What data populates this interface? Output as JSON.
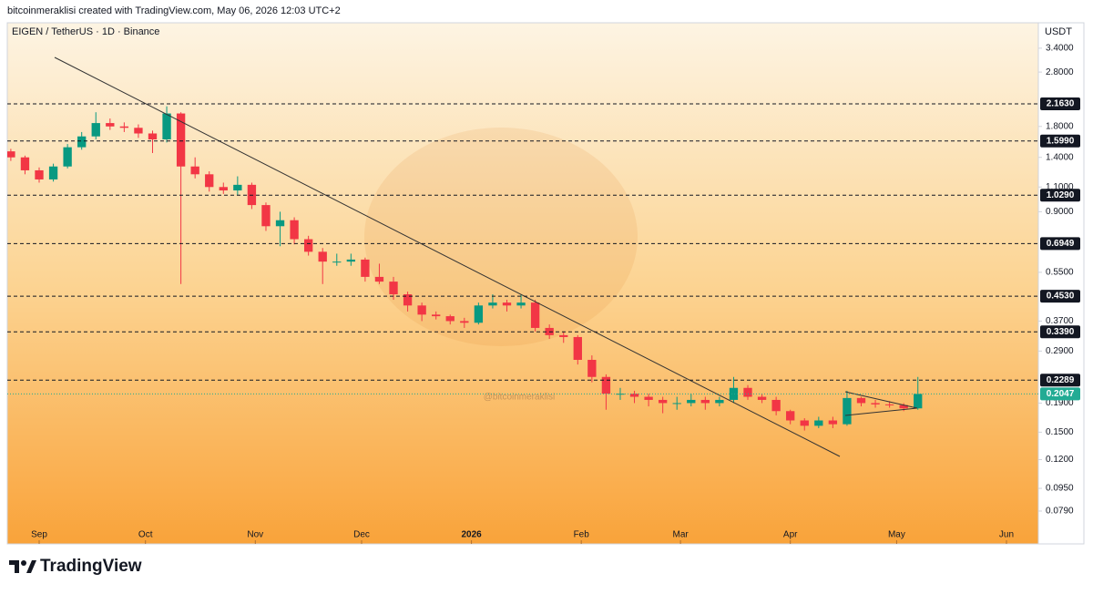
{
  "chart_data": {
    "type": "candlestick",
    "credit": "bitcoinmeraklisi created with TradingView.com, May 06, 2026 12:03 UTC+2",
    "title": "EIGEN / TetherUS · 1D · Binance",
    "currency": "USDT",
    "watermark": "@bitcoinmeraklisi",
    "brand": "TradingView",
    "log_scale": true,
    "up_color": "#089981",
    "down_color": "#f23645",
    "xlim": [
      -9,
      282
    ],
    "ylim": [
      0.0605,
      4.18
    ],
    "xticks": [
      {
        "value": 0,
        "label": "Sep"
      },
      {
        "value": 30,
        "label": "Oct"
      },
      {
        "value": 61,
        "label": "Nov"
      },
      {
        "value": 91,
        "label": "Dec"
      },
      {
        "value": 122,
        "label": "2026"
      },
      {
        "value": 153,
        "label": "Feb"
      },
      {
        "value": 181,
        "label": "Mar"
      },
      {
        "value": 212,
        "label": "Apr"
      },
      {
        "value": 242,
        "label": "May"
      },
      {
        "value": 273,
        "label": "Jun"
      }
    ],
    "yticks": [
      {
        "value": 3.4,
        "label": "3.4000"
      },
      {
        "value": 2.8,
        "label": "2.8000"
      },
      {
        "value": 1.8,
        "label": "1.8000"
      },
      {
        "value": 1.4,
        "label": "1.4000"
      },
      {
        "value": 1.1,
        "label": "1.1000"
      },
      {
        "value": 0.9,
        "label": "0.9000"
      },
      {
        "value": 0.55,
        "label": "0.5500"
      },
      {
        "value": 0.37,
        "label": "0.3700"
      },
      {
        "value": 0.29,
        "label": "0.2900"
      },
      {
        "value": 0.19,
        "label": "0.1900"
      },
      {
        "value": 0.15,
        "label": "0.1500"
      },
      {
        "value": 0.12,
        "label": "0.1200"
      },
      {
        "value": 0.095,
        "label": "0.0950"
      },
      {
        "value": 0.079,
        "label": "0.0790"
      }
    ],
    "levels": [
      {
        "value": 2.163,
        "label": "2.1630"
      },
      {
        "value": 1.599,
        "label": "1.5990"
      },
      {
        "value": 1.029,
        "label": "1.0290"
      },
      {
        "value": 0.6949,
        "label": "0.6949"
      },
      {
        "value": 0.453,
        "label": "0.4530"
      },
      {
        "value": 0.339,
        "label": "0.3390"
      },
      {
        "value": 0.2289,
        "label": "0.2289"
      }
    ],
    "last_price": {
      "value": 0.2047,
      "label": "0.2047"
    },
    "last_color": "#22ab94",
    "x": [
      -8,
      -4,
      0,
      4,
      8,
      12,
      16,
      20,
      24,
      28,
      32,
      36,
      40,
      44,
      48,
      52,
      56,
      60,
      64,
      68,
      72,
      76,
      80,
      84,
      88,
      92,
      96,
      100,
      104,
      108,
      112,
      116,
      120,
      124,
      128,
      132,
      136,
      140,
      144,
      148,
      152,
      156,
      160,
      164,
      168,
      172,
      176,
      180,
      184,
      188,
      192,
      196,
      200,
      204,
      208,
      212,
      216,
      220,
      224,
      228,
      232,
      236,
      240,
      244,
      248
    ],
    "open": [
      1.47,
      1.4,
      1.26,
      1.17,
      1.3,
      1.52,
      1.66,
      1.85,
      1.8,
      1.78,
      1.7,
      1.62,
      2.0,
      1.3,
      1.22,
      1.1,
      1.07,
      1.12,
      0.95,
      0.8,
      0.84,
      0.72,
      0.65,
      0.6,
      0.6,
      0.61,
      0.53,
      0.51,
      0.46,
      0.42,
      0.39,
      0.385,
      0.37,
      0.365,
      0.42,
      0.43,
      0.42,
      0.43,
      0.35,
      0.33,
      0.325,
      0.27,
      0.235,
      0.205,
      0.205,
      0.2,
      0.195,
      0.19,
      0.19,
      0.195,
      0.19,
      0.195,
      0.215,
      0.2,
      0.195,
      0.178,
      0.165,
      0.158,
      0.165,
      0.16,
      0.198,
      0.19,
      0.188,
      0.187,
      0.182
    ],
    "high": [
      1.5,
      1.42,
      1.29,
      1.33,
      1.56,
      1.72,
      2.02,
      1.92,
      1.86,
      1.83,
      1.74,
      2.12,
      2.02,
      1.4,
      1.25,
      1.14,
      1.2,
      1.14,
      0.97,
      0.9,
      0.86,
      0.74,
      0.67,
      0.64,
      0.64,
      0.62,
      0.59,
      0.53,
      0.47,
      0.43,
      0.4,
      0.39,
      0.38,
      0.43,
      0.46,
      0.44,
      0.46,
      0.44,
      0.36,
      0.34,
      0.33,
      0.28,
      0.24,
      0.215,
      0.21,
      0.205,
      0.2,
      0.2,
      0.205,
      0.2,
      0.2,
      0.235,
      0.22,
      0.205,
      0.2,
      0.18,
      0.168,
      0.17,
      0.17,
      0.21,
      0.2,
      0.195,
      0.193,
      0.19,
      0.235
    ],
    "low": [
      1.36,
      1.22,
      1.14,
      1.15,
      1.28,
      1.49,
      1.62,
      1.75,
      1.72,
      1.64,
      1.45,
      1.58,
      0.5,
      1.18,
      1.06,
      1.04,
      1.03,
      0.92,
      0.77,
      0.68,
      0.69,
      0.63,
      0.5,
      0.58,
      0.58,
      0.51,
      0.5,
      0.44,
      0.4,
      0.37,
      0.375,
      0.36,
      0.35,
      0.36,
      0.41,
      0.4,
      0.41,
      0.34,
      0.32,
      0.31,
      0.26,
      0.225,
      0.18,
      0.195,
      0.19,
      0.185,
      0.175,
      0.18,
      0.185,
      0.18,
      0.185,
      0.19,
      0.195,
      0.19,
      0.172,
      0.16,
      0.152,
      0.155,
      0.155,
      0.158,
      0.185,
      0.183,
      0.183,
      0.178,
      0.18
    ],
    "close": [
      1.4,
      1.26,
      1.17,
      1.3,
      1.52,
      1.66,
      1.85,
      1.8,
      1.78,
      1.7,
      1.62,
      2.0,
      1.3,
      1.22,
      1.1,
      1.07,
      1.12,
      0.95,
      0.8,
      0.84,
      0.72,
      0.65,
      0.6,
      0.6,
      0.61,
      0.53,
      0.51,
      0.46,
      0.42,
      0.39,
      0.385,
      0.37,
      0.365,
      0.42,
      0.43,
      0.42,
      0.43,
      0.35,
      0.33,
      0.325,
      0.27,
      0.235,
      0.205,
      0.205,
      0.2,
      0.195,
      0.19,
      0.19,
      0.195,
      0.19,
      0.195,
      0.215,
      0.2,
      0.195,
      0.178,
      0.165,
      0.158,
      0.165,
      0.16,
      0.198,
      0.19,
      0.188,
      0.187,
      0.182,
      0.2047
    ]
  }
}
